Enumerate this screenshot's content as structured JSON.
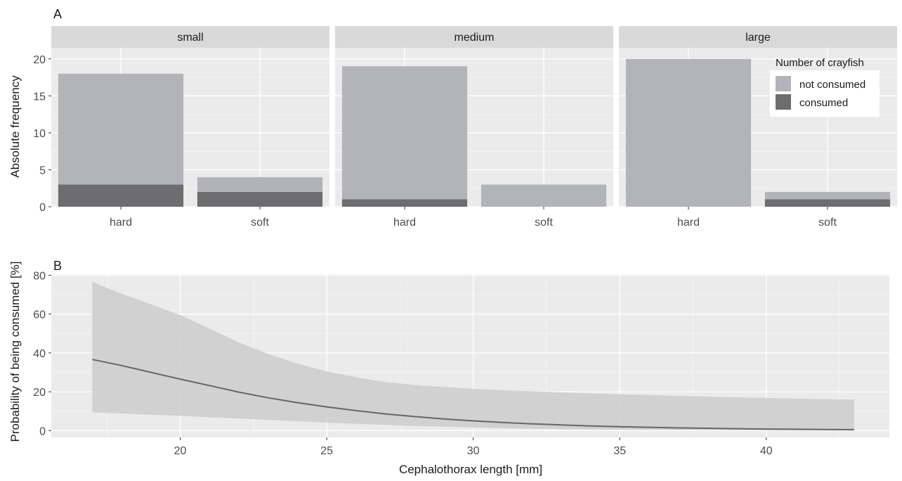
{
  "chart_data": [
    {
      "panel_label": "A",
      "type": "bar",
      "stacked": true,
      "facets": [
        "small",
        "medium",
        "large"
      ],
      "categories": [
        "hard",
        "soft"
      ],
      "series": [
        {
          "name": "not consumed",
          "color": "#b3b4b7",
          "values": {
            "small": [
              15,
              2
            ],
            "medium": [
              18,
              3
            ],
            "large": [
              20,
              1
            ]
          }
        },
        {
          "name": "consumed",
          "color": "#6d6d70",
          "values": {
            "small": [
              3,
              2
            ],
            "medium": [
              1,
              0
            ],
            "large": [
              0,
              1
            ]
          }
        }
      ],
      "ylabel": "Absolute frequency",
      "ylim": [
        0,
        21.5
      ],
      "yticks": [
        0,
        5,
        10,
        15,
        20
      ],
      "legend": {
        "title": "Number of crayfish",
        "placement": "top-right inside large panel"
      },
      "grid": true
    },
    {
      "panel_label": "B",
      "type": "line",
      "line_color": "#666668",
      "band_color": "#cdcdce",
      "x": [
        17,
        18,
        19,
        20,
        21,
        22,
        23,
        24,
        25,
        26,
        27,
        28,
        29,
        30,
        31,
        32,
        33,
        34,
        35,
        36,
        37,
        38,
        39,
        40,
        41,
        42,
        43
      ],
      "y": [
        36.6,
        33.5,
        30.0,
        26.5,
        23.2,
        19.8,
        16.9,
        14.4,
        12.2,
        10.3,
        8.6,
        7.2,
        6.0,
        5.0,
        4.2,
        3.5,
        2.9,
        2.4,
        2.0,
        1.7,
        1.4,
        1.2,
        1.0,
        0.8,
        0.7,
        0.6,
        0.5
      ],
      "ci_upper": [
        76.5,
        70.5,
        65.0,
        59.5,
        52.5,
        45.5,
        39.5,
        34.5,
        30.5,
        27.5,
        25.0,
        23.5,
        22.5,
        21.5,
        20.8,
        20.2,
        19.7,
        19.2,
        18.7,
        18.3,
        17.9,
        17.5,
        17.1,
        16.8,
        16.5,
        16.2,
        15.9
      ],
      "ci_lower": [
        9.5,
        8.8,
        8.2,
        7.6,
        6.9,
        6.2,
        5.5,
        4.8,
        4.1,
        3.5,
        2.9,
        2.4,
        2.0,
        1.6,
        1.3,
        1.0,
        0.8,
        0.6,
        0.5,
        0.4,
        0.3,
        0.25,
        0.2,
        0.15,
        0.1,
        0.08,
        0.05
      ],
      "xlabel": "Cephalothorax length [mm]",
      "ylabel": "Probability of being consumed [%]",
      "xlim": [
        15.6,
        44.2
      ],
      "ylim": [
        -3.5,
        80.5
      ],
      "xticks": [
        20,
        25,
        30,
        35,
        40
      ],
      "yticks": [
        0,
        20,
        40,
        60,
        80
      ],
      "grid": true
    }
  ]
}
